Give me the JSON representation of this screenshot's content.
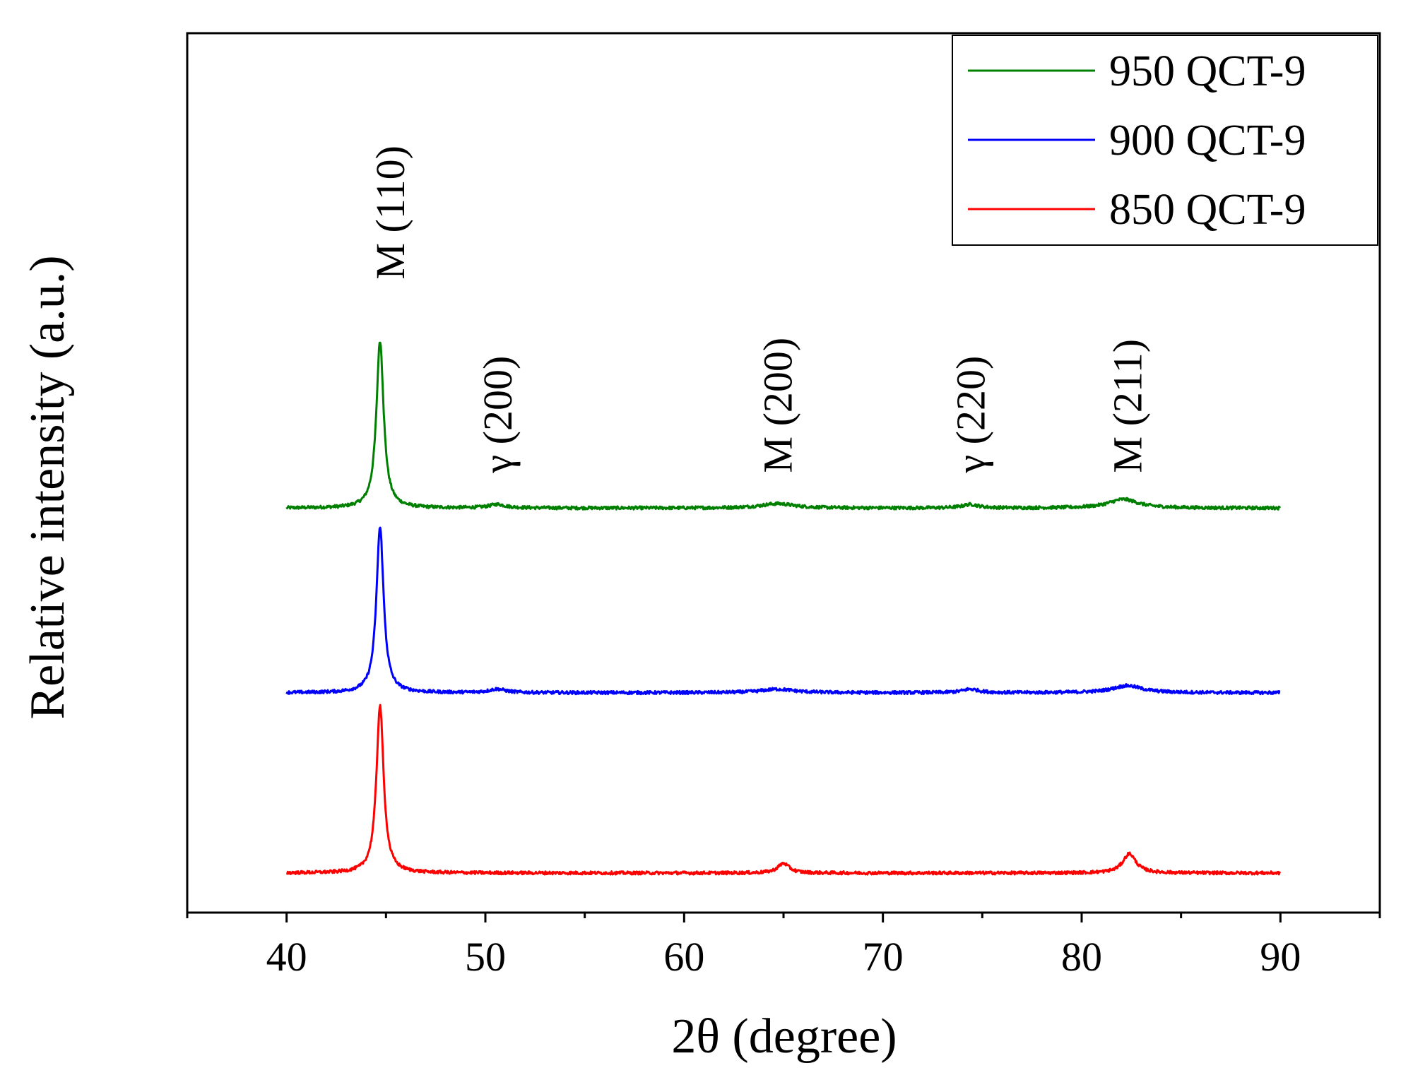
{
  "chart_data": {
    "type": "line",
    "xlabel": "2θ (degree)",
    "ylabel": "Relative intensity (a.u.)",
    "xlim": [
      35,
      95
    ],
    "ylim": [
      0,
      100
    ],
    "xticks": [
      40,
      50,
      60,
      70,
      80,
      90
    ],
    "xtick_labels": [
      "40",
      "50",
      "60",
      "70",
      "80",
      "90"
    ],
    "minor_xticks": [
      35,
      45,
      55,
      65,
      75,
      85,
      95
    ],
    "grid": false,
    "legend_position": "top-right",
    "series": [
      {
        "name": "950 QCT-9",
        "color": "#008000",
        "baseline": 46,
        "peaks": [
          {
            "pos": 44.7,
            "height": 19.0,
            "width": 0.22
          },
          {
            "pos": 50.6,
            "height": 0.4,
            "width": 0.5
          },
          {
            "pos": 64.7,
            "height": 0.5,
            "width": 1.0
          },
          {
            "pos": 74.4,
            "height": 0.4,
            "width": 0.5
          },
          {
            "pos": 82.1,
            "height": 1.0,
            "width": 0.9
          }
        ]
      },
      {
        "name": "900 QCT-9",
        "color": "#0000ff",
        "baseline": 25,
        "peaks": [
          {
            "pos": 44.7,
            "height": 18.8,
            "width": 0.22
          },
          {
            "pos": 50.6,
            "height": 0.4,
            "width": 0.5
          },
          {
            "pos": 64.7,
            "height": 0.4,
            "width": 1.0
          },
          {
            "pos": 74.4,
            "height": 0.4,
            "width": 0.5
          },
          {
            "pos": 82.3,
            "height": 0.8,
            "width": 0.9
          }
        ]
      },
      {
        "name": "850 QCT-9",
        "color": "#ff0000",
        "baseline": 4.5,
        "peaks": [
          {
            "pos": 44.7,
            "height": 19.0,
            "width": 0.22
          },
          {
            "pos": 65.0,
            "height": 1.1,
            "width": 0.35
          },
          {
            "pos": 82.4,
            "height": 2.2,
            "width": 0.4
          }
        ]
      }
    ],
    "annotations": [
      {
        "text": "M (110)",
        "x": 45.2,
        "y": 72
      },
      {
        "text": "γ (200)",
        "x": 50.6,
        "y": 50
      },
      {
        "text": "M (200)",
        "x": 64.7,
        "y": 50
      },
      {
        "text": "γ (220)",
        "x": 74.4,
        "y": 50
      },
      {
        "text": "M (211)",
        "x": 82.3,
        "y": 50
      }
    ]
  }
}
